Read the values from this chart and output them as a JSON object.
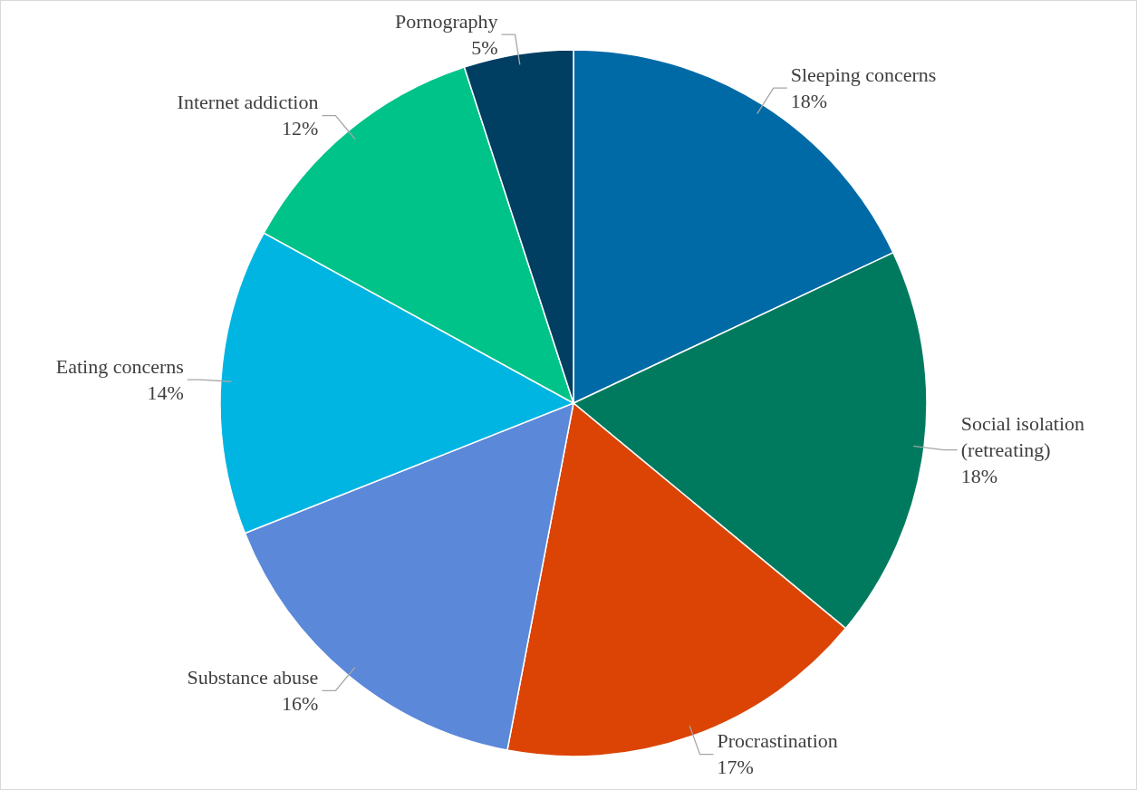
{
  "chart_data": {
    "type": "pie",
    "categories": [
      "Sleeping concerns",
      "Social isolation (retreating)",
      "Procrastination",
      "Substance abuse",
      "Eating concerns",
      "Internet addiction",
      "Pornography"
    ],
    "values": [
      18,
      18,
      17,
      16,
      14,
      12,
      5
    ],
    "value_labels": [
      "18%",
      "18%",
      "17%",
      "16%",
      "14%",
      "12%",
      "5%"
    ],
    "colors": [
      "#006aa7",
      "#007a5e",
      "#dc4405",
      "#5b88d9",
      "#00b5e2",
      "#00c389",
      "#003e62"
    ]
  }
}
